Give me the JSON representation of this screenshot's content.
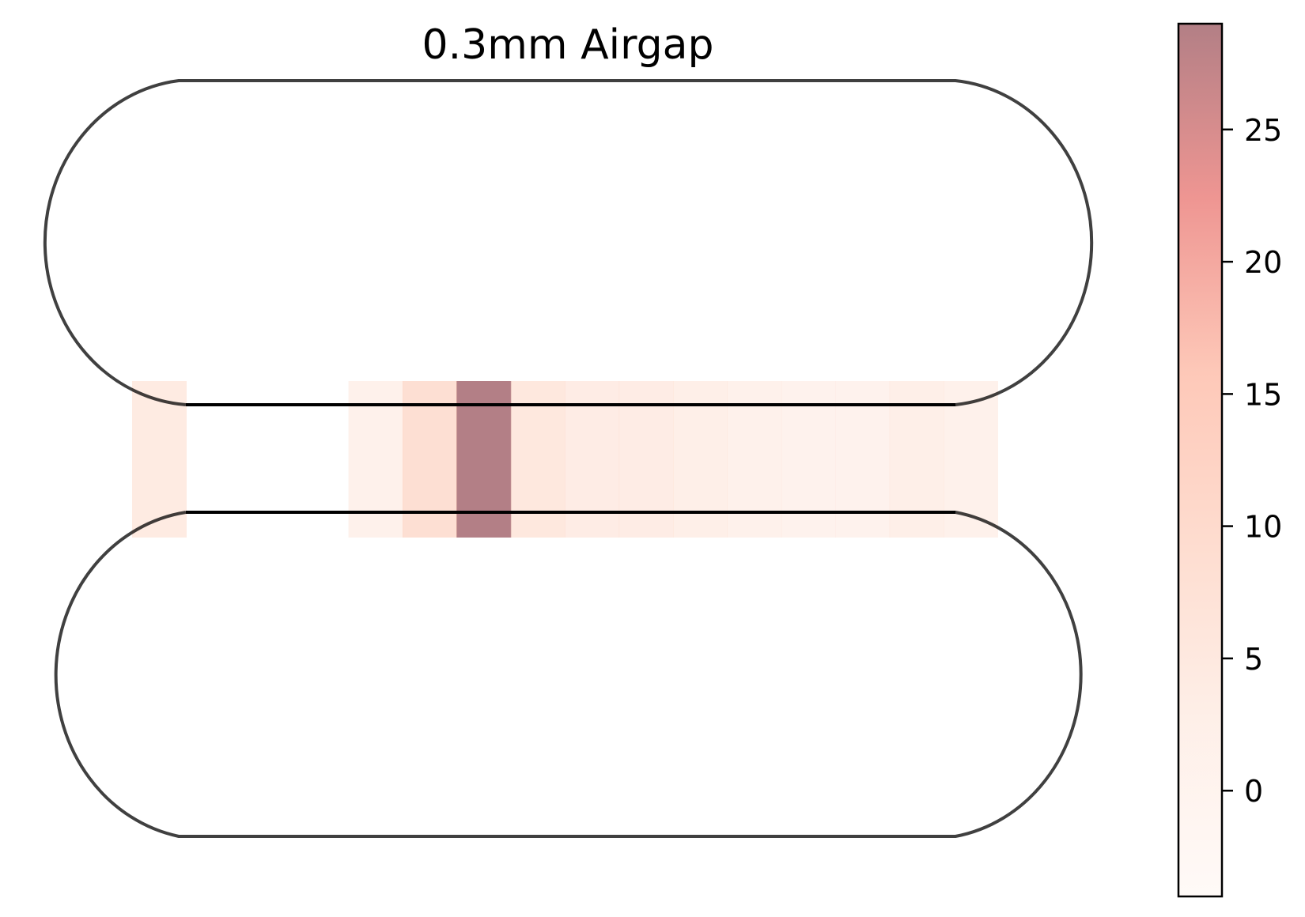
{
  "chart_data": {
    "type": "heatmap",
    "title": "0.3mm Airgap",
    "xlabel": "",
    "ylabel": "",
    "grid": false,
    "legend": "none",
    "axes_visible": false,
    "shape": "two stacked rounded (stadium) loops joined by a horizontal channel",
    "cells": [
      {
        "column": 1,
        "value": 4.2
      },
      {
        "column": 2,
        "value": null
      },
      {
        "column": 3,
        "value": null
      },
      {
        "column": 4,
        "value": null
      },
      {
        "column": 5,
        "value": 1.2
      },
      {
        "column": 6,
        "value": 8.3
      },
      {
        "column": 7,
        "value": 29.0
      },
      {
        "column": 8,
        "value": 5.3
      },
      {
        "column": 9,
        "value": 3.6
      },
      {
        "column": 10,
        "value": 3.6
      },
      {
        "column": 11,
        "value": 2.6
      },
      {
        "column": 12,
        "value": 1.6
      },
      {
        "column": 13,
        "value": 0.6
      },
      {
        "column": 14,
        "value": 0.6
      },
      {
        "column": 15,
        "value": 2.6
      },
      {
        "column": 16,
        "value": 1.2
      }
    ],
    "colorbar": {
      "min": -4,
      "max": 29,
      "ticks": [
        0,
        5,
        10,
        15,
        20,
        25
      ],
      "tick_labels": [
        "0",
        "5",
        "10",
        "15",
        "20",
        "25"
      ],
      "colormap": "Reds (semi-transparent)",
      "colors": [
        "#fff5f0",
        "#fee0d2",
        "#fcbba1",
        "#fc9272",
        "#de2d26",
        "#67000d"
      ],
      "opacity": 0.5
    },
    "outline_color": "#000000"
  }
}
